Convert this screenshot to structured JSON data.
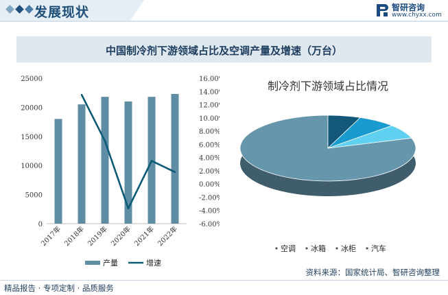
{
  "header": {
    "title": "发展现状"
  },
  "logo": {
    "name": "智研咨询",
    "url": "www.chyxx.com"
  },
  "chart_title": "中国制冷剂下游领域占比及空调产量及增速（万台）",
  "chart_data": [
    {
      "type": "bar",
      "categories": [
        "2017年",
        "2018年",
        "2019年",
        "2020年",
        "2021年",
        "2022年"
      ],
      "series": [
        {
          "name": "产量",
          "type": "bar",
          "axis": "left",
          "values": [
            18000,
            20500,
            21800,
            21000,
            21800,
            22300
          ],
          "color": "#5f8ea4"
        },
        {
          "name": "增速",
          "type": "line",
          "axis": "right",
          "values": [
            null,
            13.5,
            6.5,
            -3.7,
            3.5,
            1.8
          ],
          "color": "#0c5a78"
        }
      ],
      "ylim_left": [
        0,
        25000
      ],
      "yticks_left": [
        "0",
        "5000",
        "10000",
        "15000",
        "20000",
        "25000"
      ],
      "ylim_right": [
        -6,
        16
      ],
      "yticks_right": [
        "-6.00%",
        "-4.00%",
        "-2.00%",
        "0.00%",
        "2.00%",
        "4.00%",
        "6.00%",
        "8.00%",
        "10.00%",
        "12.00%",
        "14.00%",
        "16.00%"
      ],
      "legend": [
        "产量",
        "增速"
      ],
      "legend_position": "bottom",
      "grid": false
    },
    {
      "type": "pie",
      "title": "制冷剂下游领域占比情况",
      "slices": [
        {
          "label": "空调",
          "value": 80,
          "color": "#6596ab"
        },
        {
          "label": "冰箱",
          "value": 6,
          "color": "#13587a"
        },
        {
          "label": "冰柜",
          "value": 7,
          "color": "#1a9bcf"
        },
        {
          "label": "汽车",
          "value": 7,
          "color": "#5fd0f0"
        }
      ],
      "legend_position": "bottom",
      "style": "3d"
    }
  ],
  "footer": {
    "left": "精品报告 · 专项定制 · 品质服务",
    "source": "资料来源：国家统计局、智研咨询整理"
  }
}
